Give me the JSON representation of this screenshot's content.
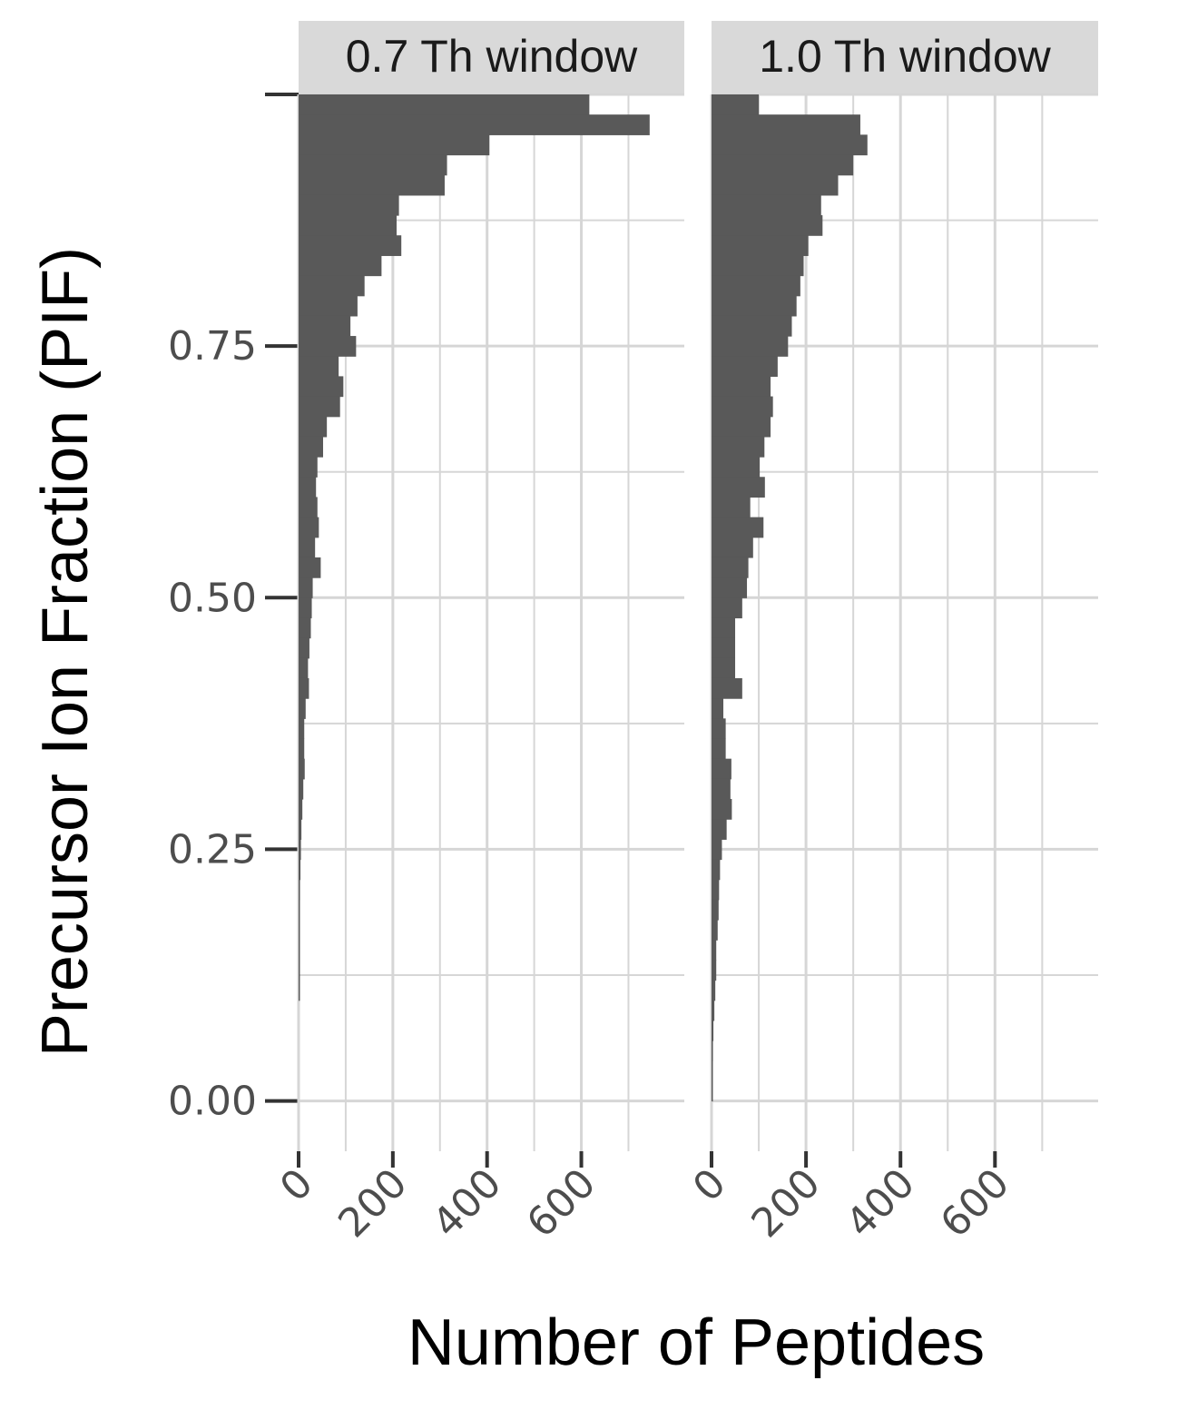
{
  "chart_data": {
    "type": "bar",
    "orientation": "horizontal",
    "xlabel": "Number of Peptides",
    "ylabel": "Precursor Ion Fraction (PIF)",
    "xlim": [
      0,
      780
    ],
    "ylim": [
      -0.05,
      1.0
    ],
    "x_ticks": [
      0,
      200,
      400,
      600
    ],
    "x_minor_ticks": [
      100,
      300,
      500,
      700
    ],
    "y_ticks": [
      0.0,
      0.25,
      0.5,
      0.75
    ],
    "y_tick_labels": [
      "0.00",
      "0.25",
      "0.50",
      "0.75"
    ],
    "y_minor_ticks": [
      0.125,
      0.375,
      0.625,
      0.875
    ],
    "top_tick_label": "-",
    "bar_color": "#595959",
    "grid": true,
    "bin_width": 0.02,
    "bin_centers": [
      0.99,
      0.97,
      0.95,
      0.93,
      0.91,
      0.89,
      0.87,
      0.85,
      0.83,
      0.81,
      0.79,
      0.77,
      0.75,
      0.73,
      0.71,
      0.69,
      0.67,
      0.65,
      0.63,
      0.61,
      0.59,
      0.57,
      0.55,
      0.53,
      0.51,
      0.49,
      0.47,
      0.45,
      0.43,
      0.41,
      0.39,
      0.37,
      0.35,
      0.33,
      0.31,
      0.29,
      0.27,
      0.25,
      0.23,
      0.21,
      0.19,
      0.17,
      0.15,
      0.13,
      0.11,
      0.09,
      0.07,
      0.05,
      0.03,
      0.01
    ],
    "panels": [
      {
        "strip_label": "0.7 Th window",
        "values": [
          617,
          745,
          405,
          315,
          310,
          213,
          208,
          218,
          176,
          140,
          125,
          110,
          122,
          85,
          95,
          88,
          60,
          52,
          40,
          37,
          40,
          43,
          35,
          47,
          30,
          28,
          26,
          23,
          20,
          22,
          15,
          12,
          12,
          13,
          10,
          8,
          6,
          5,
          4,
          3,
          2,
          2,
          1,
          1,
          1,
          0,
          0,
          0,
          0,
          0
        ]
      },
      {
        "strip_label": "1.0 Th window",
        "values": [
          100,
          315,
          330,
          300,
          268,
          232,
          235,
          205,
          195,
          188,
          180,
          170,
          162,
          140,
          125,
          130,
          125,
          112,
          102,
          113,
          82,
          110,
          88,
          78,
          75,
          65,
          50,
          50,
          50,
          65,
          25,
          30,
          30,
          42,
          40,
          43,
          32,
          22,
          18,
          16,
          15,
          13,
          10,
          10,
          8,
          6,
          4,
          3,
          2,
          1
        ]
      }
    ]
  }
}
